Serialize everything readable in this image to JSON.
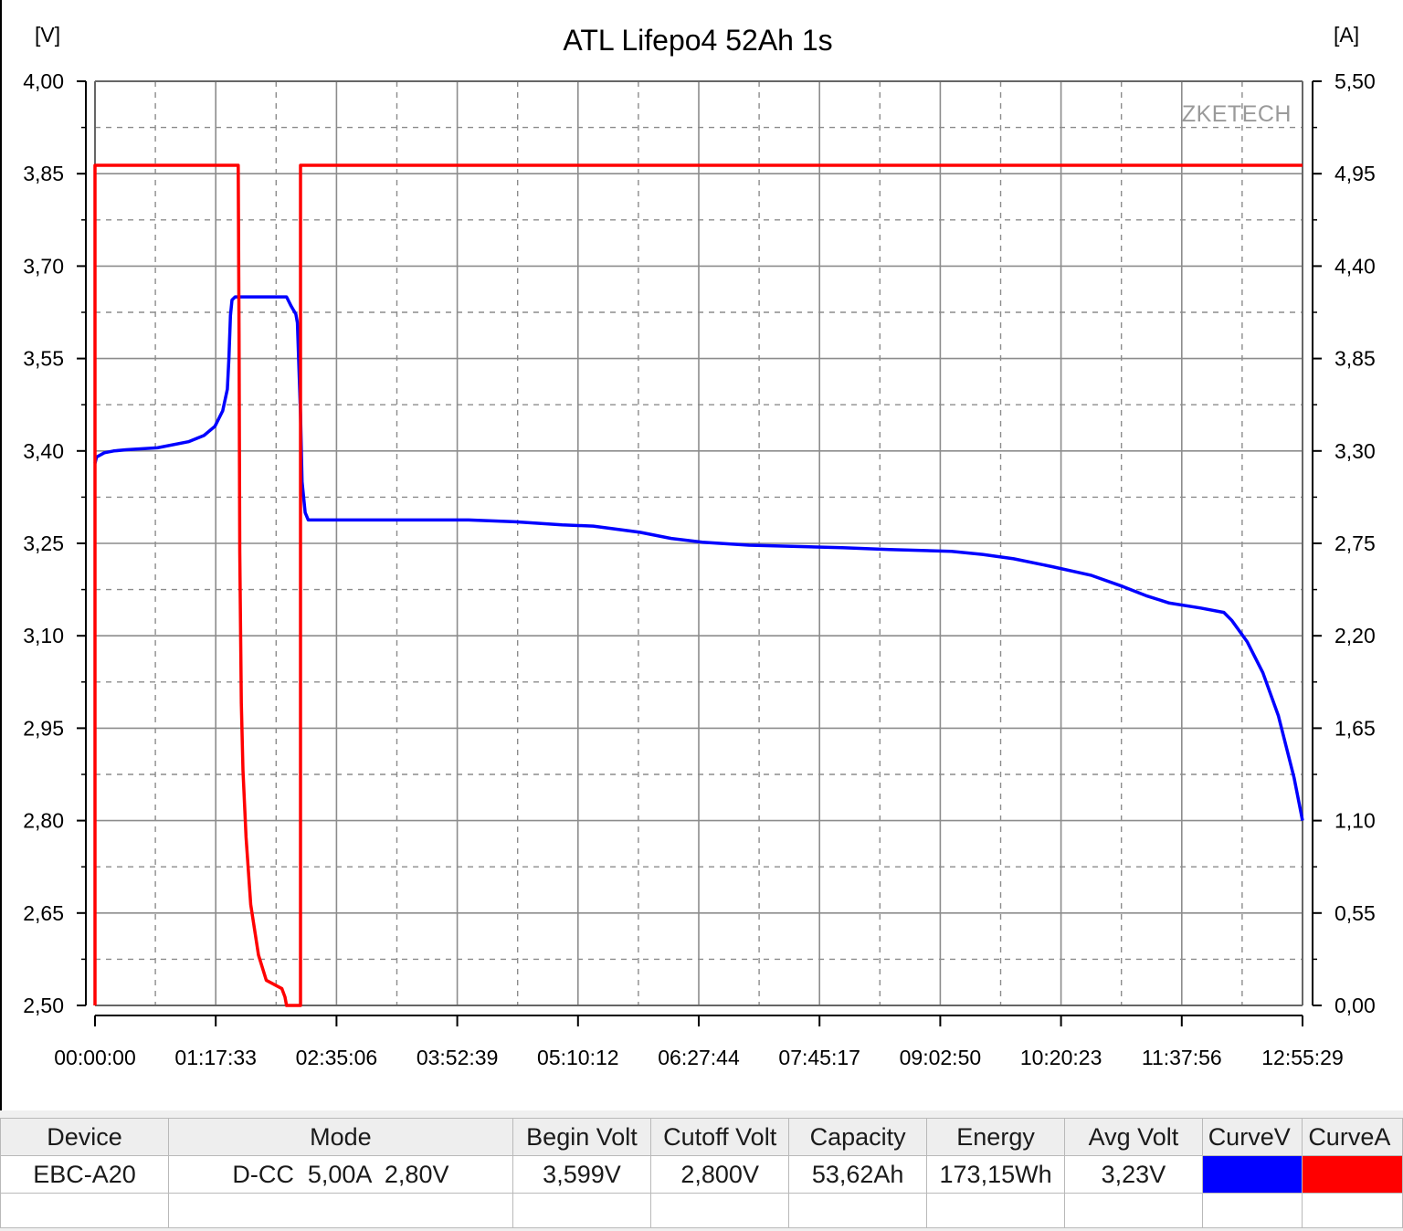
{
  "chart_data": {
    "type": "line",
    "title": "ATL Lifepo4 52Ah 1s",
    "watermark": "ZKETECH",
    "y_left": {
      "unit": "[V]",
      "range": [
        2.5,
        4.0
      ],
      "ticks": [
        "4,00",
        "3,85",
        "3,70",
        "3,55",
        "3,40",
        "3,25",
        "3,10",
        "2,95",
        "2,80",
        "2,65",
        "2,50"
      ]
    },
    "y_right": {
      "unit": "[A]",
      "range": [
        0.0,
        5.5
      ],
      "ticks": [
        "5,50",
        "4,95",
        "4,40",
        "3,85",
        "3,30",
        "2,75",
        "2,20",
        "1,65",
        "1,10",
        "0,55",
        "0,00"
      ]
    },
    "x": {
      "unit": "time",
      "range": [
        "00:00:00",
        "12:55:29"
      ],
      "ticks": [
        "00:00:00",
        "01:17:33",
        "02:35:06",
        "03:52:39",
        "05:10:12",
        "06:27:44",
        "07:45:17",
        "09:02:50",
        "10:20:23",
        "11:37:56",
        "12:55:29"
      ]
    },
    "grid": true,
    "series": [
      {
        "axis": "left",
        "color": "#0000ff",
        "points": [
          [
            "00:00:00",
            3.38
          ],
          [
            "00:01:00",
            3.39
          ],
          [
            "00:06:00",
            3.397
          ],
          [
            "00:12:00",
            3.4
          ],
          [
            "00:20:00",
            3.402
          ],
          [
            "00:40:00",
            3.405
          ],
          [
            "01:00:00",
            3.415
          ],
          [
            "01:10:00",
            3.425
          ],
          [
            "01:17:00",
            3.44
          ],
          [
            "01:22:00",
            3.465
          ],
          [
            "01:25:00",
            3.5
          ],
          [
            "01:26:00",
            3.55
          ],
          [
            "01:27:00",
            3.62
          ],
          [
            "01:28:00",
            3.645
          ],
          [
            "01:30:00",
            3.65
          ],
          [
            "02:03:00",
            3.65
          ],
          [
            "02:06:00",
            3.635
          ],
          [
            "02:09:00",
            3.622
          ],
          [
            "02:10:00",
            3.608
          ],
          [
            "02:12:00",
            3.46
          ],
          [
            "02:13:00",
            3.35
          ],
          [
            "02:15:00",
            3.3
          ],
          [
            "02:17:00",
            3.288
          ],
          [
            "02:30:00",
            3.288
          ],
          [
            "04:00:00",
            3.288
          ],
          [
            "04:30:00",
            3.285
          ],
          [
            "05:00:00",
            3.28
          ],
          [
            "05:20:00",
            3.278
          ],
          [
            "05:50:00",
            3.268
          ],
          [
            "06:10:00",
            3.258
          ],
          [
            "06:30:00",
            3.252
          ],
          [
            "07:00:00",
            3.247
          ],
          [
            "08:00:00",
            3.243
          ],
          [
            "08:30:00",
            3.24
          ],
          [
            "09:10:00",
            3.237
          ],
          [
            "09:30:00",
            3.232
          ],
          [
            "09:50:00",
            3.225
          ],
          [
            "10:15:00",
            3.212
          ],
          [
            "10:40:00",
            3.198
          ],
          [
            "11:00:00",
            3.18
          ],
          [
            "11:15:00",
            3.165
          ],
          [
            "11:30:00",
            3.153
          ],
          [
            "11:50:00",
            3.145
          ],
          [
            "12:05:00",
            3.138
          ],
          [
            "12:10:00",
            3.125
          ],
          [
            "12:20:00",
            3.09
          ],
          [
            "12:30:00",
            3.04
          ],
          [
            "12:40:00",
            2.97
          ],
          [
            "12:50:00",
            2.87
          ],
          [
            "12:55:29",
            2.8
          ]
        ]
      },
      {
        "axis": "right",
        "color": "#ff0000",
        "points": [
          [
            "00:00:00",
            0.0
          ],
          [
            "00:00:00",
            5.0
          ],
          [
            "01:32:00",
            5.0
          ],
          [
            "01:32:30",
            4.0
          ],
          [
            "01:33:00",
            2.7
          ],
          [
            "01:34:00",
            1.8
          ],
          [
            "01:35:00",
            1.4
          ],
          [
            "01:37:00",
            1.0
          ],
          [
            "01:40:00",
            0.6
          ],
          [
            "01:45:00",
            0.3
          ],
          [
            "01:50:00",
            0.15
          ],
          [
            "02:00:00",
            0.1
          ],
          [
            "02:02:00",
            0.05
          ],
          [
            "02:03:00",
            0.0
          ],
          [
            "02:12:00",
            0.0
          ],
          [
            "02:12:00",
            5.0
          ],
          [
            "12:55:29",
            5.0
          ]
        ]
      }
    ]
  },
  "table": {
    "headers": [
      "Device",
      "Mode",
      "Begin Volt",
      "Cutoff Volt",
      "Capacity",
      "Energy",
      "Avg Volt",
      "CurveV",
      "CurveA"
    ],
    "row": {
      "device": "EBC-A20",
      "mode": "D-CC  5,00A  2,80V",
      "begin_volt": "3,599V",
      "cutoff_volt": "2,800V",
      "capacity": "53,62Ah",
      "energy": "173,15Wh",
      "avg_volt": "3,23V",
      "curve_v_color": "#0000ff",
      "curve_a_color": "#ff0000"
    }
  }
}
